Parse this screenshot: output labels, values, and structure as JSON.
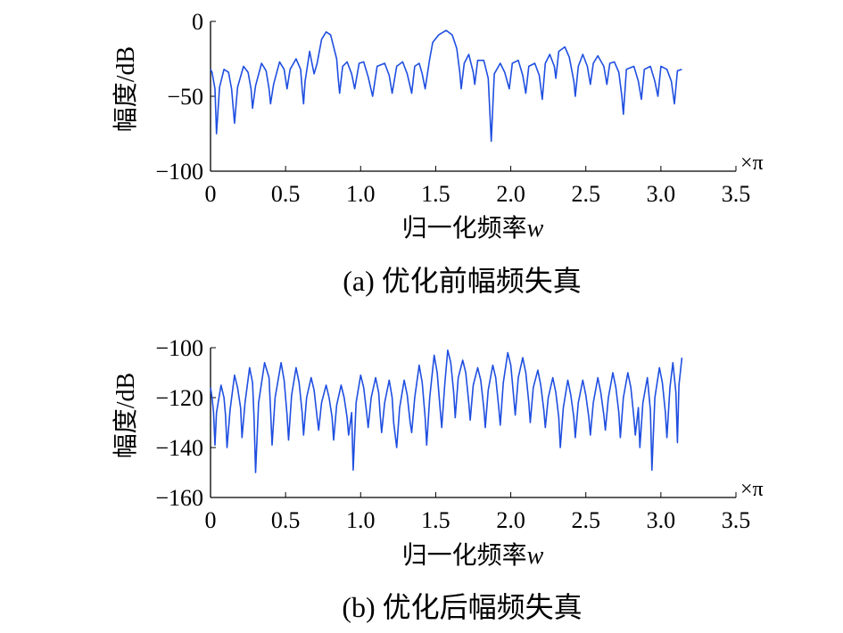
{
  "line_color": "#1f4fe0",
  "chart_data": [
    {
      "type": "line",
      "caption": "(a) 优化前幅频失真",
      "xlabel_text": "归一化频率",
      "xlabel_var": "w",
      "ylabel": "幅度/dB",
      "x_unit": "×π",
      "xlim": [
        0,
        3.5
      ],
      "ylim": [
        -100,
        0
      ],
      "xticks": [
        "0",
        "0.5",
        "1.0",
        "1.5",
        "2.0",
        "2.5",
        "3.0",
        "3.5"
      ],
      "yticks": [
        "0",
        "−50",
        "−100"
      ],
      "series_points": [
        [
          0.0,
          -32
        ],
        [
          0.01,
          -34
        ],
        [
          0.03,
          -45
        ],
        [
          0.04,
          -75
        ],
        [
          0.06,
          -44
        ],
        [
          0.09,
          -32
        ],
        [
          0.12,
          -34
        ],
        [
          0.14,
          -45
        ],
        [
          0.16,
          -68
        ],
        [
          0.18,
          -44
        ],
        [
          0.22,
          -30
        ],
        [
          0.25,
          -34
        ],
        [
          0.27,
          -45
        ],
        [
          0.28,
          -58
        ],
        [
          0.3,
          -43
        ],
        [
          0.34,
          -28
        ],
        [
          0.37,
          -33
        ],
        [
          0.39,
          -45
        ],
        [
          0.4,
          -55
        ],
        [
          0.42,
          -42
        ],
        [
          0.46,
          -27
        ],
        [
          0.49,
          -32
        ],
        [
          0.51,
          -45
        ],
        [
          0.53,
          -32
        ],
        [
          0.57,
          -25
        ],
        [
          0.6,
          -32
        ],
        [
          0.61,
          -45
        ],
        [
          0.62,
          -55
        ],
        [
          0.63,
          -40
        ],
        [
          0.66,
          -20
        ],
        [
          0.68,
          -30
        ],
        [
          0.69,
          -35
        ],
        [
          0.71,
          -28
        ],
        [
          0.74,
          -12
        ],
        [
          0.77,
          -7
        ],
        [
          0.8,
          -9
        ],
        [
          0.84,
          -25
        ],
        [
          0.85,
          -37
        ],
        [
          0.86,
          -48
        ],
        [
          0.88,
          -30
        ],
        [
          0.91,
          -27
        ],
        [
          0.94,
          -35
        ],
        [
          0.96,
          -45
        ],
        [
          0.99,
          -28
        ],
        [
          1.02,
          -27
        ],
        [
          1.05,
          -37
        ],
        [
          1.08,
          -50
        ],
        [
          1.11,
          -30
        ],
        [
          1.16,
          -28
        ],
        [
          1.19,
          -36
        ],
        [
          1.21,
          -48
        ],
        [
          1.24,
          -30
        ],
        [
          1.28,
          -27
        ],
        [
          1.31,
          -35
        ],
        [
          1.34,
          -48
        ],
        [
          1.36,
          -30
        ],
        [
          1.39,
          -28
        ],
        [
          1.41,
          -35
        ],
        [
          1.43,
          -45
        ],
        [
          1.46,
          -25
        ],
        [
          1.48,
          -14
        ],
        [
          1.52,
          -9
        ],
        [
          1.57,
          -6
        ],
        [
          1.61,
          -9
        ],
        [
          1.64,
          -18
        ],
        [
          1.66,
          -34
        ],
        [
          1.67,
          -45
        ],
        [
          1.69,
          -28
        ],
        [
          1.72,
          -22
        ],
        [
          1.75,
          -34
        ],
        [
          1.76,
          -42
        ],
        [
          1.78,
          -26
        ],
        [
          1.82,
          -26
        ],
        [
          1.85,
          -38
        ],
        [
          1.87,
          -80
        ],
        [
          1.89,
          -35
        ],
        [
          1.93,
          -28
        ],
        [
          1.96,
          -34
        ],
        [
          1.99,
          -45
        ],
        [
          2.01,
          -28
        ],
        [
          2.05,
          -26
        ],
        [
          2.08,
          -36
        ],
        [
          2.1,
          -48
        ],
        [
          2.12,
          -30
        ],
        [
          2.16,
          -28
        ],
        [
          2.19,
          -36
        ],
        [
          2.21,
          -52
        ],
        [
          2.23,
          -28
        ],
        [
          2.26,
          -22
        ],
        [
          2.29,
          -30
        ],
        [
          2.3,
          -38
        ],
        [
          2.32,
          -20
        ],
        [
          2.36,
          -17
        ],
        [
          2.39,
          -24
        ],
        [
          2.42,
          -40
        ],
        [
          2.43,
          -50
        ],
        [
          2.45,
          -30
        ],
        [
          2.48,
          -22
        ],
        [
          2.51,
          -30
        ],
        [
          2.53,
          -42
        ],
        [
          2.55,
          -28
        ],
        [
          2.58,
          -23
        ],
        [
          2.62,
          -30
        ],
        [
          2.64,
          -42
        ],
        [
          2.66,
          -28
        ],
        [
          2.69,
          -27
        ],
        [
          2.72,
          -34
        ],
        [
          2.74,
          -50
        ],
        [
          2.75,
          -62
        ],
        [
          2.77,
          -32
        ],
        [
          2.82,
          -30
        ],
        [
          2.85,
          -40
        ],
        [
          2.87,
          -52
        ],
        [
          2.89,
          -32
        ],
        [
          2.93,
          -30
        ],
        [
          2.96,
          -40
        ],
        [
          2.98,
          -50
        ],
        [
          3.0,
          -30
        ],
        [
          3.04,
          -32
        ],
        [
          3.07,
          -40
        ],
        [
          3.09,
          -55
        ],
        [
          3.11,
          -33
        ],
        [
          3.14,
          -32
        ]
      ]
    },
    {
      "type": "line",
      "caption": "(b) 优化后幅频失真",
      "xlabel_text": "归一化频率",
      "xlabel_var": "w",
      "ylabel": "幅度/dB",
      "x_unit": "×π",
      "xlim": [
        0,
        3.5
      ],
      "ylim": [
        -160,
        -100
      ],
      "xticks": [
        "0",
        "0.5",
        "1.0",
        "1.5",
        "2.0",
        "2.5",
        "3.0",
        "3.5"
      ],
      "yticks": [
        "−100",
        "−120",
        "−140",
        "−160"
      ],
      "series_points": [
        [
          0.0,
          -116
        ],
        [
          0.01,
          -120
        ],
        [
          0.02,
          -126
        ],
        [
          0.03,
          -139
        ],
        [
          0.04,
          -126
        ],
        [
          0.07,
          -115
        ],
        [
          0.09,
          -120
        ],
        [
          0.1,
          -127
        ],
        [
          0.11,
          -140
        ],
        [
          0.13,
          -125
        ],
        [
          0.16,
          -111
        ],
        [
          0.18,
          -116
        ],
        [
          0.2,
          -124
        ],
        [
          0.21,
          -136
        ],
        [
          0.23,
          -122
        ],
        [
          0.26,
          -108
        ],
        [
          0.28,
          -114
        ],
        [
          0.29,
          -128
        ],
        [
          0.3,
          -150
        ],
        [
          0.32,
          -122
        ],
        [
          0.36,
          -106
        ],
        [
          0.39,
          -112
        ],
        [
          0.4,
          -125
        ],
        [
          0.41,
          -139
        ],
        [
          0.43,
          -120
        ],
        [
          0.47,
          -106
        ],
        [
          0.49,
          -113
        ],
        [
          0.51,
          -127
        ],
        [
          0.52,
          -137
        ],
        [
          0.54,
          -119
        ],
        [
          0.57,
          -108
        ],
        [
          0.59,
          -114
        ],
        [
          0.61,
          -126
        ],
        [
          0.62,
          -135
        ],
        [
          0.64,
          -120
        ],
        [
          0.67,
          -112
        ],
        [
          0.69,
          -117
        ],
        [
          0.71,
          -128
        ],
        [
          0.72,
          -133
        ],
        [
          0.74,
          -122
        ],
        [
          0.77,
          -115
        ],
        [
          0.79,
          -120
        ],
        [
          0.81,
          -128
        ],
        [
          0.82,
          -137
        ],
        [
          0.84,
          -123
        ],
        [
          0.87,
          -115
        ],
        [
          0.89,
          -120
        ],
        [
          0.91,
          -128
        ],
        [
          0.92,
          -135
        ],
        [
          0.94,
          -126
        ],
        [
          0.95,
          -149
        ],
        [
          0.97,
          -122
        ],
        [
          1.0,
          -111
        ],
        [
          1.02,
          -116
        ],
        [
          1.04,
          -126
        ],
        [
          1.05,
          -132
        ],
        [
          1.07,
          -120
        ],
        [
          1.1,
          -112
        ],
        [
          1.12,
          -118
        ],
        [
          1.13,
          -127
        ],
        [
          1.14,
          -134
        ],
        [
          1.16,
          -122
        ],
        [
          1.19,
          -113
        ],
        [
          1.21,
          -120
        ],
        [
          1.22,
          -130
        ],
        [
          1.24,
          -140
        ],
        [
          1.26,
          -124
        ],
        [
          1.29,
          -113
        ],
        [
          1.31,
          -119
        ],
        [
          1.33,
          -130
        ],
        [
          1.34,
          -134
        ],
        [
          1.36,
          -120
        ],
        [
          1.39,
          -107
        ],
        [
          1.41,
          -114
        ],
        [
          1.43,
          -128
        ],
        [
          1.44,
          -139
        ],
        [
          1.46,
          -120
        ],
        [
          1.49,
          -103
        ],
        [
          1.51,
          -110
        ],
        [
          1.53,
          -125
        ],
        [
          1.54,
          -132
        ],
        [
          1.56,
          -115
        ],
        [
          1.58,
          -101
        ],
        [
          1.6,
          -106
        ],
        [
          1.62,
          -118
        ],
        [
          1.63,
          -128
        ],
        [
          1.65,
          -112
        ],
        [
          1.68,
          -105
        ],
        [
          1.7,
          -110
        ],
        [
          1.72,
          -122
        ],
        [
          1.73,
          -129
        ],
        [
          1.75,
          -115
        ],
        [
          1.78,
          -108
        ],
        [
          1.8,
          -113
        ],
        [
          1.82,
          -124
        ],
        [
          1.83,
          -132
        ],
        [
          1.85,
          -117
        ],
        [
          1.88,
          -107
        ],
        [
          1.9,
          -112
        ],
        [
          1.92,
          -124
        ],
        [
          1.93,
          -131
        ],
        [
          1.95,
          -114
        ],
        [
          1.98,
          -102
        ],
        [
          2.0,
          -107
        ],
        [
          2.02,
          -120
        ],
        [
          2.03,
          -127
        ],
        [
          2.05,
          -112
        ],
        [
          2.08,
          -104
        ],
        [
          2.1,
          -110
        ],
        [
          2.12,
          -122
        ],
        [
          2.13,
          -130
        ],
        [
          2.15,
          -116
        ],
        [
          2.18,
          -109
        ],
        [
          2.2,
          -115
        ],
        [
          2.22,
          -125
        ],
        [
          2.23,
          -132
        ],
        [
          2.25,
          -120
        ],
        [
          2.28,
          -112
        ],
        [
          2.3,
          -118
        ],
        [
          2.32,
          -128
        ],
        [
          2.33,
          -140
        ],
        [
          2.35,
          -124
        ],
        [
          2.38,
          -113
        ],
        [
          2.4,
          -119
        ],
        [
          2.42,
          -128
        ],
        [
          2.43,
          -136
        ],
        [
          2.45,
          -122
        ],
        [
          2.48,
          -113
        ],
        [
          2.5,
          -119
        ],
        [
          2.52,
          -128
        ],
        [
          2.53,
          -135
        ],
        [
          2.55,
          -122
        ],
        [
          2.58,
          -112
        ],
        [
          2.6,
          -118
        ],
        [
          2.62,
          -127
        ],
        [
          2.63,
          -133
        ],
        [
          2.65,
          -120
        ],
        [
          2.68,
          -110
        ],
        [
          2.7,
          -116
        ],
        [
          2.72,
          -126
        ],
        [
          2.73,
          -136
        ],
        [
          2.75,
          -120
        ],
        [
          2.78,
          -110
        ],
        [
          2.8,
          -116
        ],
        [
          2.82,
          -128
        ],
        [
          2.83,
          -135
        ],
        [
          2.85,
          -124
        ],
        [
          2.86,
          -140
        ],
        [
          2.88,
          -122
        ],
        [
          2.91,
          -112
        ],
        [
          2.93,
          -125
        ],
        [
          2.94,
          -149
        ],
        [
          2.96,
          -120
        ],
        [
          2.99,
          -108
        ],
        [
          3.01,
          -114
        ],
        [
          3.03,
          -126
        ],
        [
          3.04,
          -136
        ],
        [
          3.06,
          -116
        ],
        [
          3.08,
          -106
        ],
        [
          3.1,
          -118
        ],
        [
          3.11,
          -138
        ],
        [
          3.12,
          -115
        ],
        [
          3.14,
          -104
        ]
      ]
    }
  ]
}
